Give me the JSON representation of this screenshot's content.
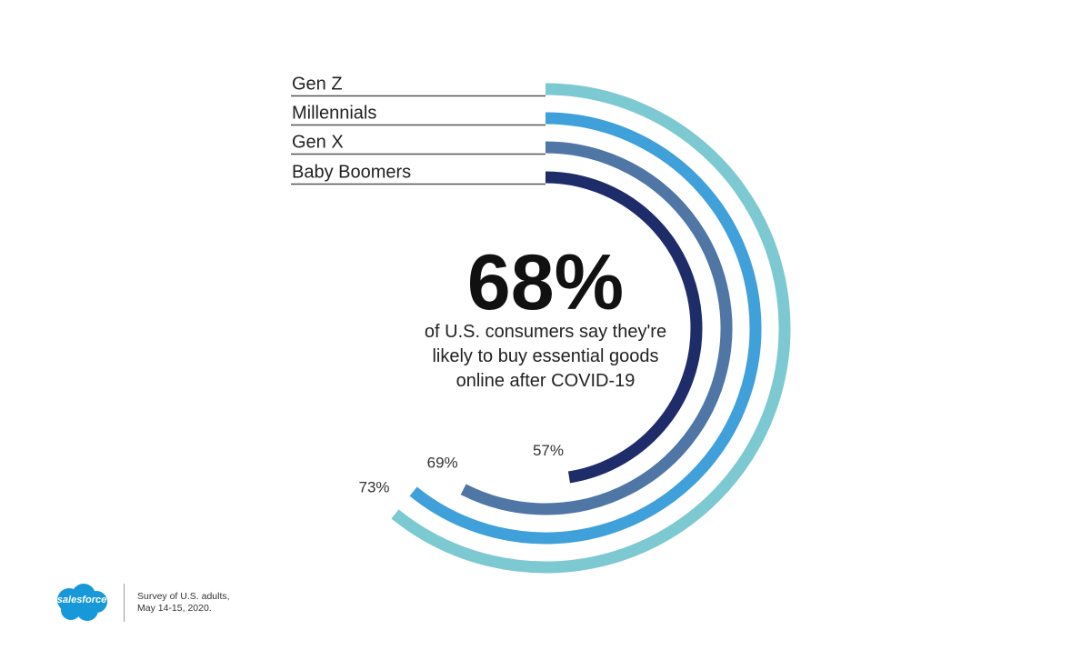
{
  "chart_data": {
    "type": "radial-bar",
    "title": "68%",
    "subtitle": "of U.S. consumers say they're likely to buy essential goods online after COVID-19",
    "unit": "%",
    "series": [
      {
        "name": "Gen Z",
        "value": 73,
        "value_label": "73%",
        "color": "#7DC9D1"
      },
      {
        "name": "Millennials",
        "value": 73,
        "value_label": "",
        "color": "#3FA0DA"
      },
      {
        "name": "Gen X",
        "value": 69,
        "value_label": "69%",
        "color": "#4F76A4"
      },
      {
        "name": "Baby Boomers",
        "value": 57,
        "value_label": "57%",
        "color": "#1E2D69"
      }
    ]
  },
  "headline": {
    "value": "68%",
    "text_line1": "of U.S. consumers say they're",
    "text_line2": "likely to buy essential goods",
    "text_line3": "online after COVID-19"
  },
  "footer": {
    "logo_text": "salesforce",
    "note_line1": "Survey of U.S. adults,",
    "note_line2": "May 14-15, 2020."
  },
  "colors": {
    "legend_rule": "#555555",
    "logo": "#1798D8"
  }
}
